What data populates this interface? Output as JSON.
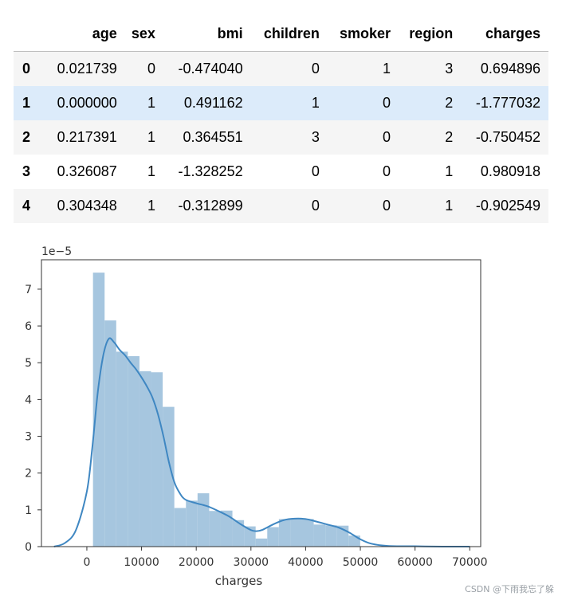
{
  "table": {
    "columns": [
      "",
      "age",
      "sex",
      "bmi",
      "children",
      "smoker",
      "region",
      "charges"
    ],
    "rows": [
      [
        "0",
        "0.021739",
        "0",
        "-0.474040",
        "0",
        "1",
        "3",
        "0.694896"
      ],
      [
        "1",
        "0.000000",
        "1",
        "0.491162",
        "1",
        "0",
        "2",
        "-1.777032"
      ],
      [
        "2",
        "0.217391",
        "1",
        "0.364551",
        "3",
        "0",
        "2",
        "-0.750452"
      ],
      [
        "3",
        "0.326087",
        "1",
        "-1.328252",
        "0",
        "0",
        "1",
        "0.980918"
      ],
      [
        "4",
        "0.304348",
        "1",
        "-0.312899",
        "0",
        "0",
        "1",
        "-0.902549"
      ]
    ]
  },
  "chart_data": {
    "type": "histogram",
    "xlabel": "charges",
    "ylabel": "",
    "offset_label": "1e−5",
    "xlim": [
      -8300,
      72000
    ],
    "ylim": [
      0,
      7.8
    ],
    "x_ticks": [
      0,
      10000,
      20000,
      30000,
      40000,
      50000,
      60000,
      70000
    ],
    "x_tick_labels": [
      "0",
      "10000",
      "20000",
      "30000",
      "40000",
      "50000",
      "60000",
      "70000"
    ],
    "y_ticks": [
      0,
      1,
      2,
      3,
      4,
      5,
      6,
      7
    ],
    "y_tick_labels": [
      "0",
      "1",
      "2",
      "3",
      "4",
      "5",
      "6",
      "7"
    ],
    "bins": [
      {
        "x0": 1122,
        "x1": 3246,
        "y": 7.45
      },
      {
        "x0": 3246,
        "x1": 5370,
        "y": 6.15
      },
      {
        "x0": 5370,
        "x1": 7494,
        "y": 5.3
      },
      {
        "x0": 7494,
        "x1": 9618,
        "y": 5.18
      },
      {
        "x0": 9618,
        "x1": 11742,
        "y": 4.77
      },
      {
        "x0": 11742,
        "x1": 13866,
        "y": 4.74
      },
      {
        "x0": 13866,
        "x1": 15990,
        "y": 3.8
      },
      {
        "x0": 15990,
        "x1": 18114,
        "y": 1.05
      },
      {
        "x0": 18114,
        "x1": 20238,
        "y": 1.25
      },
      {
        "x0": 20238,
        "x1": 22362,
        "y": 1.45
      },
      {
        "x0": 22362,
        "x1": 24486,
        "y": 0.97
      },
      {
        "x0": 24486,
        "x1": 26610,
        "y": 0.98
      },
      {
        "x0": 26610,
        "x1": 28734,
        "y": 0.72
      },
      {
        "x0": 28734,
        "x1": 30858,
        "y": 0.55
      },
      {
        "x0": 30858,
        "x1": 32982,
        "y": 0.22
      },
      {
        "x0": 32982,
        "x1": 35106,
        "y": 0.53
      },
      {
        "x0": 35106,
        "x1": 37230,
        "y": 0.75
      },
      {
        "x0": 37230,
        "x1": 39354,
        "y": 0.75
      },
      {
        "x0": 39354,
        "x1": 41478,
        "y": 0.75
      },
      {
        "x0": 41478,
        "x1": 43602,
        "y": 0.6
      },
      {
        "x0": 43602,
        "x1": 45726,
        "y": 0.58
      },
      {
        "x0": 45726,
        "x1": 47850,
        "y": 0.57
      },
      {
        "x0": 47850,
        "x1": 49974,
        "y": 0.3
      }
    ],
    "kde": {
      "x": [
        -6000,
        -4000,
        -2000,
        0,
        1000,
        2000,
        3000,
        4000,
        5000,
        6000,
        7000,
        8000,
        9000,
        10000,
        11000,
        12000,
        13000,
        14000,
        15000,
        16000,
        17000,
        18000,
        20000,
        22000,
        24000,
        26000,
        28000,
        30000,
        31000,
        32000,
        34000,
        36000,
        38000,
        40000,
        42000,
        44000,
        46000,
        48000,
        50000,
        52000,
        55000,
        60000,
        65000,
        70000
      ],
      "y": [
        0.0,
        0.1,
        0.45,
        1.5,
        2.7,
        4.2,
        5.2,
        5.65,
        5.55,
        5.35,
        5.2,
        5.0,
        4.82,
        4.6,
        4.35,
        4.05,
        3.6,
        3.0,
        2.3,
        1.75,
        1.45,
        1.28,
        1.18,
        1.1,
        0.97,
        0.82,
        0.62,
        0.45,
        0.42,
        0.45,
        0.6,
        0.72,
        0.76,
        0.75,
        0.68,
        0.6,
        0.52,
        0.38,
        0.2,
        0.08,
        0.02,
        0.01,
        0.0,
        0.0
      ]
    },
    "colors": {
      "bar": "#a6c6df",
      "line": "#3f87c2"
    }
  },
  "footer": {
    "watermark": "CSDN @下雨我忘了躲"
  }
}
